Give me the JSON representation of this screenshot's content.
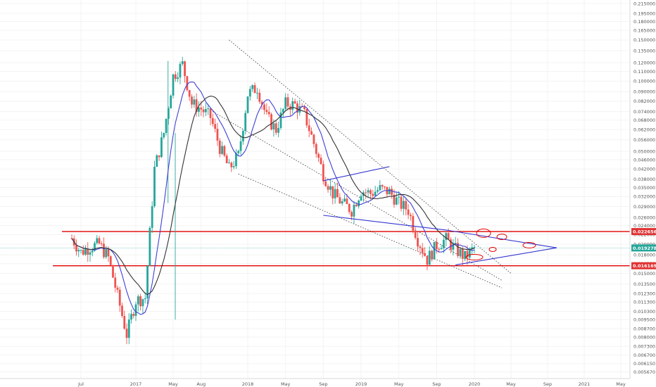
{
  "chart_data": {
    "type": "candlestick",
    "scale": "log",
    "ylim": [
      0.0055,
      0.215
    ],
    "y_ticks": [
      "0.215000",
      "0.195000",
      "0.180000",
      "0.165000",
      "0.150000",
      "0.135000",
      "0.120000",
      "0.110000",
      "0.100000",
      "0.090000",
      "0.082000",
      "0.074000",
      "0.068000",
      "0.062000",
      "0.056000",
      "0.050000",
      "0.046000",
      "0.042000",
      "0.038000",
      "0.035000",
      "0.032000",
      "0.029000",
      "0.026000",
      "0.024000",
      "0.022000",
      "0.020000",
      "0.018000",
      "0.016500",
      "0.015000",
      "0.013500",
      "0.012300",
      "0.011300",
      "0.010300",
      "0.009500",
      "0.008700",
      "0.008000",
      "0.007300",
      "0.006700",
      "0.006150",
      "0.005670"
    ],
    "x_ticks": [
      {
        "label": "Jul",
        "date": "2016-07"
      },
      {
        "label": "2017",
        "date": "2017-01"
      },
      {
        "label": "May",
        "date": "2017-05"
      },
      {
        "label": "Aug",
        "date": "2017-08"
      },
      {
        "label": "2018",
        "date": "2018-01"
      },
      {
        "label": "May",
        "date": "2018-05"
      },
      {
        "label": "Sep",
        "date": "2018-09"
      },
      {
        "label": "2019",
        "date": "2019-01"
      },
      {
        "label": "May",
        "date": "2019-05"
      },
      {
        "label": "Sep",
        "date": "2019-09"
      },
      {
        "label": "2020",
        "date": "2020-01"
      },
      {
        "label": "May",
        "date": "2020-05"
      },
      {
        "label": "Sep",
        "date": "2020-09"
      },
      {
        "label": "2021",
        "date": "2021-01"
      },
      {
        "label": "May",
        "date": "2021-05"
      }
    ],
    "price_badges": [
      {
        "value": "0.022656",
        "color": "#e03131"
      },
      {
        "value": "0.019278",
        "color": "#26a69a"
      },
      {
        "value": "0.016169",
        "color": "#e03131"
      }
    ],
    "horizontal_levels": [
      0.022656,
      0.016169
    ],
    "current_price": 0.019278,
    "colors": {
      "up": "#26a69a",
      "down": "#ef5350",
      "ma_fast": "#3f3fd6",
      "ma_slow": "#333333",
      "level": "#e00000",
      "trend_dotted": "#444444",
      "pattern": "#3535d0",
      "markers": "#e00000",
      "grid": "#f3f3f3"
    },
    "grid": true
  }
}
